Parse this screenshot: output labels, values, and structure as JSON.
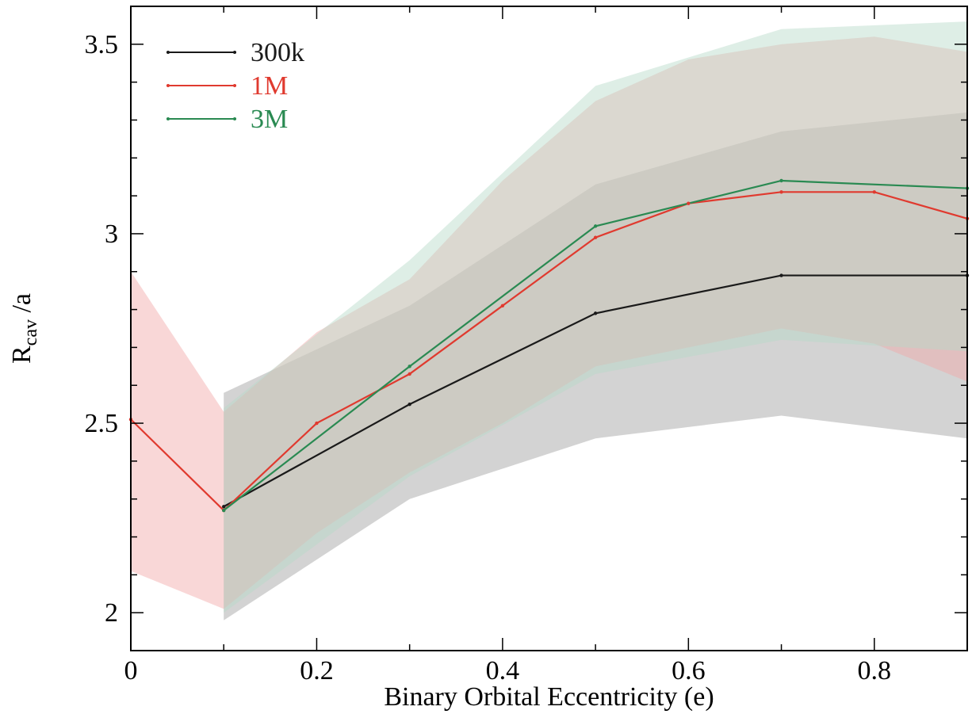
{
  "chart_data": {
    "type": "line",
    "title": "",
    "xlabel": "Binary Orbital Eccentricity (e)",
    "ylabel": {
      "main": "R",
      "sub": "cav",
      "suffix": " /a"
    },
    "xlim": [
      0,
      0.9
    ],
    "ylim": [
      1.9,
      3.6
    ],
    "xticks": [
      0,
      0.2,
      0.4,
      0.6,
      0.8
    ],
    "xtick_labels": [
      "0",
      "0.2",
      "0.4",
      "0.6",
      "0.8"
    ],
    "yticks": [
      2,
      2.5,
      3,
      3.5
    ],
    "ytick_labels": [
      "2",
      "2.5",
      "3",
      "3.5"
    ],
    "grid": false,
    "legend_position": "top-left",
    "series": [
      {
        "name": "300k",
        "color": "#1a1a1a",
        "band_color": "#9e9e9e",
        "x": [
          0.1,
          0.3,
          0.5,
          0.7,
          0.9
        ],
        "y": [
          2.28,
          2.55,
          2.79,
          2.89,
          2.89
        ],
        "lower": [
          1.98,
          2.3,
          2.46,
          2.52,
          2.46
        ],
        "upper": [
          2.58,
          2.81,
          3.13,
          3.27,
          3.32
        ]
      },
      {
        "name": "1M",
        "color": "#e03a2f",
        "band_color": "#f2a6a6",
        "x": [
          0,
          0.1,
          0.2,
          0.3,
          0.4,
          0.5,
          0.6,
          0.7,
          0.8,
          0.9
        ],
        "y": [
          2.51,
          2.27,
          2.5,
          2.63,
          2.81,
          2.99,
          3.08,
          3.11,
          3.11,
          3.04
        ],
        "lower": [
          2.11,
          2.01,
          2.21,
          2.37,
          2.5,
          2.65,
          2.7,
          2.75,
          2.71,
          2.61
        ],
        "upper": [
          2.9,
          2.53,
          2.74,
          2.88,
          3.14,
          3.35,
          3.46,
          3.5,
          3.52,
          3.48
        ]
      },
      {
        "name": "3M",
        "color": "#2a8a52",
        "band_color": "#b5d9c7",
        "x": [
          0.1,
          0.3,
          0.5,
          0.7,
          0.9
        ],
        "y": [
          2.27,
          2.65,
          3.02,
          3.14,
          3.12
        ],
        "lower": [
          2.0,
          2.36,
          2.63,
          2.72,
          2.69
        ],
        "upper": [
          2.54,
          2.93,
          3.39,
          3.54,
          3.56
        ]
      }
    ]
  }
}
